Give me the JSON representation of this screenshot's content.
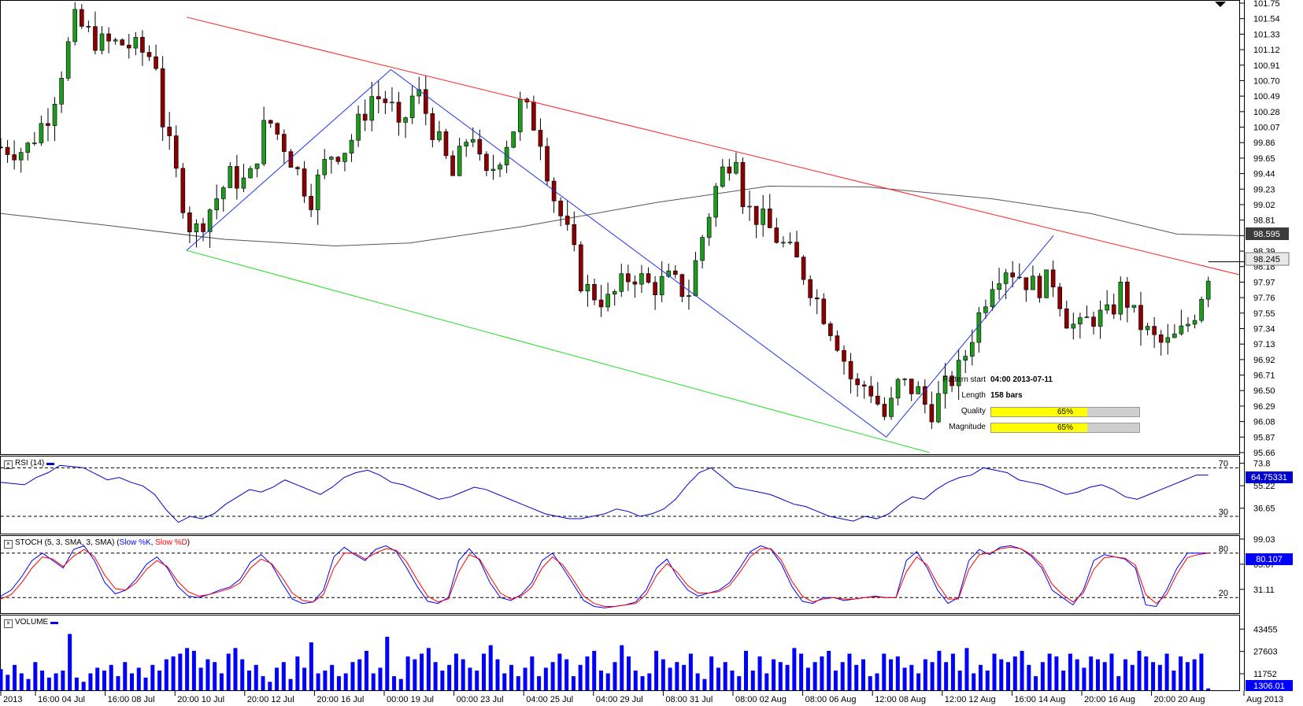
{
  "chart_data": [
    {
      "type": "candlestick",
      "panel": "price",
      "y_ticks": [
        "101.75",
        "101.54",
        "101.33",
        "101.12",
        "100.91",
        "100.70",
        "100.49",
        "100.28",
        "100.07",
        "99.86",
        "99.65",
        "99.44",
        "99.23",
        "99.02",
        "98.81",
        "98.60",
        "98.39",
        "98.18",
        "97.97",
        "97.76",
        "97.55",
        "97.34",
        "97.13",
        "96.92",
        "96.71",
        "96.50",
        "96.29",
        "96.08",
        "95.87",
        "95.66"
      ],
      "ylim": [
        95.66,
        101.75
      ],
      "x_labels": [
        "2013",
        "16:00 04 Jul",
        "16:00 08 Jul",
        "20:00 10 Jul",
        "20:00 12 Jul",
        "20:00 16 Jul",
        "00:00 19 Jul",
        "00:00 23 Jul",
        "04:00 25 Jul",
        "04:00 29 Jul",
        "08:00 31 Jul",
        "08:00 02 Aug",
        "08:00 06 Aug",
        "12:00 08 Aug",
        "12:00 12 Aug",
        "16:00 14 Aug",
        "20:00 16 Aug",
        "20:00 20 Aug",
        "Aug 2013"
      ],
      "ma_label": "98.595",
      "last_price": "98.245",
      "ma_value": 98.595,
      "last_value": 98.245,
      "pattern": {
        "start_label": "Pattern start",
        "start_value": "04:00 2013-07-11",
        "length_label": "Length",
        "length_value": "158 bars",
        "quality_label": "Quality",
        "quality_value": "65%",
        "quality": 0.65,
        "magnitude_label": "Magnitude",
        "magnitude_value": "65%",
        "magnitude": 0.65
      },
      "channel_upper": [
        [
          0.15,
          101.56
        ],
        [
          1.0,
          98.07
        ]
      ],
      "channel_lower": [
        [
          0.15,
          98.4
        ],
        [
          0.75,
          95.66
        ]
      ],
      "zigzag": [
        [
          0.15,
          98.4
        ],
        [
          0.315,
          100.85
        ],
        [
          0.715,
          95.87
        ],
        [
          0.85,
          98.6
        ]
      ],
      "ma_curve": [
        [
          0,
          98.9
        ],
        [
          0.08,
          98.75
        ],
        [
          0.18,
          98.55
        ],
        [
          0.27,
          98.46
        ],
        [
          0.33,
          98.5
        ],
        [
          0.42,
          98.72
        ],
        [
          0.53,
          99.05
        ],
        [
          0.62,
          99.27
        ],
        [
          0.7,
          99.26
        ],
        [
          0.8,
          99.1
        ],
        [
          0.88,
          98.9
        ],
        [
          0.95,
          98.62
        ],
        [
          1.0,
          98.6
        ]
      ],
      "price_path": [
        [
          0,
          99.8
        ],
        [
          0.02,
          99.75
        ],
        [
          0.04,
          100.3
        ],
        [
          0.06,
          101.5
        ],
        [
          0.08,
          101.2
        ],
        [
          0.1,
          101.2
        ],
        [
          0.125,
          101.0
        ],
        [
          0.13,
          100.2
        ],
        [
          0.145,
          99.2
        ],
        [
          0.155,
          98.6
        ],
        [
          0.17,
          99.0
        ],
        [
          0.185,
          99.4
        ],
        [
          0.2,
          99.3
        ],
        [
          0.215,
          100.2
        ],
        [
          0.23,
          99.8
        ],
        [
          0.25,
          99.1
        ],
        [
          0.265,
          99.7
        ],
        [
          0.28,
          99.8
        ],
        [
          0.3,
          100.5
        ],
        [
          0.315,
          100.4
        ],
        [
          0.32,
          99.9
        ],
        [
          0.335,
          100.6
        ],
        [
          0.35,
          100.0
        ],
        [
          0.365,
          99.4
        ],
        [
          0.38,
          100.1
        ],
        [
          0.39,
          99.3
        ],
        [
          0.4,
          99.6
        ],
        [
          0.415,
          100.1
        ],
        [
          0.42,
          100.4
        ],
        [
          0.435,
          100.0
        ],
        [
          0.445,
          99.2
        ],
        [
          0.46,
          98.5
        ],
        [
          0.47,
          97.9
        ],
        [
          0.49,
          97.7
        ],
        [
          0.51,
          98.1
        ],
        [
          0.525,
          97.9
        ],
        [
          0.54,
          98.0
        ],
        [
          0.555,
          97.8
        ],
        [
          0.565,
          98.5
        ],
        [
          0.58,
          99.4
        ],
        [
          0.595,
          99.8
        ],
        [
          0.6,
          99.0
        ],
        [
          0.615,
          98.8
        ],
        [
          0.63,
          98.5
        ],
        [
          0.645,
          98.2
        ],
        [
          0.66,
          97.7
        ],
        [
          0.675,
          97.2
        ],
        [
          0.69,
          96.5
        ],
        [
          0.7,
          96.6
        ],
        [
          0.715,
          96.1
        ],
        [
          0.725,
          96.6
        ],
        [
          0.74,
          96.5
        ],
        [
          0.75,
          96.2
        ],
        [
          0.765,
          96.6
        ],
        [
          0.775,
          96.8
        ],
        [
          0.785,
          97.3
        ],
        [
          0.8,
          98.0
        ],
        [
          0.81,
          98.2
        ],
        [
          0.82,
          98.1
        ],
        [
          0.835,
          97.9
        ],
        [
          0.85,
          98.0
        ],
        [
          0.86,
          97.5
        ],
        [
          0.87,
          97.3
        ],
        [
          0.88,
          97.5
        ],
        [
          0.895,
          97.5
        ],
        [
          0.905,
          97.9
        ],
        [
          0.915,
          97.5
        ],
        [
          0.93,
          97.2
        ],
        [
          0.94,
          97.1
        ],
        [
          0.955,
          97.3
        ],
        [
          0.965,
          97.6
        ],
        [
          0.975,
          98.1
        ]
      ]
    },
    {
      "type": "line",
      "panel": "rsi",
      "title": "RSI (14)",
      "y_ticks": [
        "73.8",
        "55.22",
        "36.65"
      ],
      "levels": [
        "70",
        "30"
      ],
      "ylim": [
        17,
        78
      ],
      "current": "64.75331",
      "current_value": 64.75,
      "series": [
        {
          "color": "#0000cc",
          "values": [
            58,
            57,
            56,
            62,
            66,
            72,
            71,
            70,
            65,
            60,
            62,
            58,
            55,
            48,
            35,
            25,
            30,
            28,
            32,
            40,
            46,
            52,
            50,
            54,
            60,
            56,
            52,
            48,
            54,
            62,
            66,
            68,
            64,
            58,
            56,
            52,
            48,
            44,
            46,
            50,
            54,
            52,
            48,
            44,
            40,
            36,
            32,
            30,
            28,
            28,
            30,
            32,
            36,
            34,
            30,
            32,
            36,
            44,
            56,
            66,
            70,
            62,
            54,
            52,
            50,
            48,
            44,
            40,
            38,
            34,
            30,
            28,
            26,
            30,
            28,
            32,
            40,
            46,
            44,
            52,
            58,
            62,
            64,
            70,
            68,
            66,
            60,
            58,
            56,
            52,
            48,
            50,
            54,
            56,
            52,
            46,
            44,
            48,
            52,
            56,
            60,
            64,
            64
          ]
        }
      ]
    },
    {
      "type": "line",
      "panel": "stoch",
      "title": "STOCH (5, 3, SMA, 3, SMA)",
      "legend": [
        "Slow %K",
        "Slow %D"
      ],
      "y_ticks": [
        "99.03",
        "65.07",
        "31.11"
      ],
      "levels": [
        "80",
        "20"
      ],
      "ylim": [
        0,
        100
      ],
      "current": "80.107",
      "current_value": 80.107,
      "series": [
        {
          "name": "Slow %K",
          "color": "#0000ff",
          "values": [
            22,
            30,
            48,
            70,
            80,
            70,
            60,
            85,
            90,
            70,
            40,
            25,
            30,
            45,
            65,
            75,
            60,
            35,
            22,
            20,
            24,
            30,
            34,
            45,
            68,
            78,
            65,
            40,
            18,
            12,
            14,
            30,
            75,
            88,
            78,
            70,
            85,
            90,
            82,
            60,
            35,
            15,
            12,
            20,
            70,
            86,
            70,
            40,
            20,
            16,
            24,
            40,
            70,
            80,
            60,
            38,
            16,
            8,
            6,
            8,
            10,
            14,
            30,
            60,
            72,
            48,
            30,
            22,
            26,
            30,
            40,
            60,
            82,
            90,
            85,
            65,
            35,
            15,
            12,
            20,
            20,
            16,
            18,
            20,
            22,
            20,
            20,
            70,
            82,
            60,
            30,
            12,
            20,
            70,
            85,
            78,
            88,
            90,
            86,
            76,
            60,
            30,
            20,
            10,
            30,
            70,
            78,
            75,
            72,
            60,
            10,
            8,
            30,
            60,
            80,
            80,
            80
          ]
        },
        {
          "name": "Slow %D",
          "color": "#ff0000",
          "values": [
            18,
            24,
            40,
            60,
            75,
            72,
            62,
            76,
            85,
            75,
            50,
            32,
            30,
            40,
            58,
            70,
            62,
            42,
            28,
            22,
            24,
            28,
            32,
            40,
            60,
            72,
            66,
            48,
            26,
            16,
            14,
            24,
            60,
            80,
            80,
            72,
            80,
            86,
            84,
            68,
            44,
            22,
            14,
            18,
            55,
            78,
            72,
            48,
            26,
            18,
            22,
            34,
            60,
            75,
            64,
            44,
            22,
            12,
            8,
            8,
            10,
            12,
            24,
            50,
            66,
            54,
            36,
            26,
            26,
            28,
            36,
            54,
            75,
            86,
            86,
            70,
            42,
            22,
            14,
            18,
            20,
            18,
            18,
            20,
            21,
            20,
            20,
            55,
            75,
            64,
            38,
            18,
            18,
            58,
            78,
            80,
            86,
            88,
            86,
            78,
            64,
            38,
            24,
            14,
            26,
            58,
            74,
            75,
            73,
            64,
            24,
            12,
            24,
            52,
            74,
            78,
            80
          ]
        }
      ]
    },
    {
      "type": "bar",
      "panel": "volume",
      "title": "VOLUME",
      "y_ticks": [
        "43455",
        "27603",
        "11752"
      ],
      "ylim": [
        0,
        52000
      ],
      "current": "1306.01",
      "current_value": 1306.01,
      "series": [
        {
          "color": "#0000ff",
          "values": [
            15000,
            11000,
            18000,
            12000,
            8000,
            20000,
            14000,
            9000,
            12000,
            14000,
            40000,
            9000,
            6000,
            12000,
            16000,
            14000,
            18000,
            10000,
            20000,
            12000,
            16000,
            9000,
            18000,
            14000,
            22000,
            24000,
            26000,
            30000,
            28000,
            16000,
            22000,
            20000,
            12000,
            26000,
            30000,
            22000,
            14000,
            18000,
            10000,
            6000,
            16000,
            20000,
            8000,
            24000,
            16000,
            34000,
            12000,
            14000,
            18000,
            10000,
            12000,
            20000,
            22000,
            28000,
            12000,
            16000,
            38000,
            10000,
            8000,
            24000,
            22000,
            26000,
            30000,
            20000,
            14000,
            18000,
            26000,
            22000,
            16000,
            14000,
            26000,
            32000,
            22000,
            12000,
            18000,
            10000,
            16000,
            24000,
            10000,
            16000,
            20000,
            26000,
            22000,
            10000,
            18000,
            24000,
            28000,
            14000,
            12000,
            20000,
            32000,
            24000,
            14000,
            10000,
            12000,
            28000,
            22000,
            16000,
            20000,
            18000,
            26000,
            12000,
            8000,
            24000,
            16000,
            20000,
            14000,
            10000,
            28000,
            14000,
            24000,
            12000,
            22000,
            20000,
            18000,
            30000,
            26000,
            16000,
            20000,
            24000,
            28000,
            14000,
            20000,
            26000,
            18000,
            22000,
            10000,
            12000,
            26000,
            22000,
            24000,
            16000,
            18000,
            12000,
            22000,
            20000,
            28000,
            20000,
            26000,
            14000,
            30000,
            12000,
            18000,
            14000,
            26000,
            22000,
            20000,
            24000,
            28000,
            18000,
            10000,
            20000,
            26000,
            24000,
            14000,
            26000,
            22000,
            16000,
            24000,
            22000,
            20000,
            26000,
            10000,
            22000,
            18000,
            28000,
            24000,
            20000,
            18000,
            26000,
            14000,
            24000,
            20000,
            22000,
            26000,
            1306
          ]
        }
      ]
    }
  ]
}
